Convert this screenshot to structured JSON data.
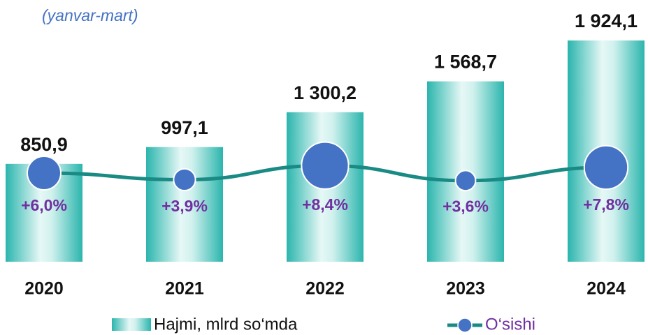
{
  "chart_data": {
    "type": "bar-line",
    "subtitle": "(yanvar-mart)",
    "categories": [
      "2020",
      "2021",
      "2022",
      "2023",
      "2024"
    ],
    "series": [
      {
        "name": "Hajmi, mlrd so‘mda",
        "type": "bar",
        "color": "#2bb5ad",
        "values": [
          850.9,
          997.1,
          1300.2,
          1568.7,
          1924.1
        ],
        "value_labels": [
          "850,9",
          "997,1",
          "1 300,2",
          "1 568,7",
          "1 924,1"
        ]
      },
      {
        "name": "O‘sishi",
        "type": "line",
        "color": "#4472c4",
        "line_color": "#1a8a84",
        "values": [
          6.0,
          3.9,
          8.4,
          3.6,
          7.8
        ],
        "value_labels": [
          "+6,0%",
          "+3,9%",
          "+8,4%",
          "+3,6%",
          "+7,8%"
        ]
      }
    ]
  }
}
